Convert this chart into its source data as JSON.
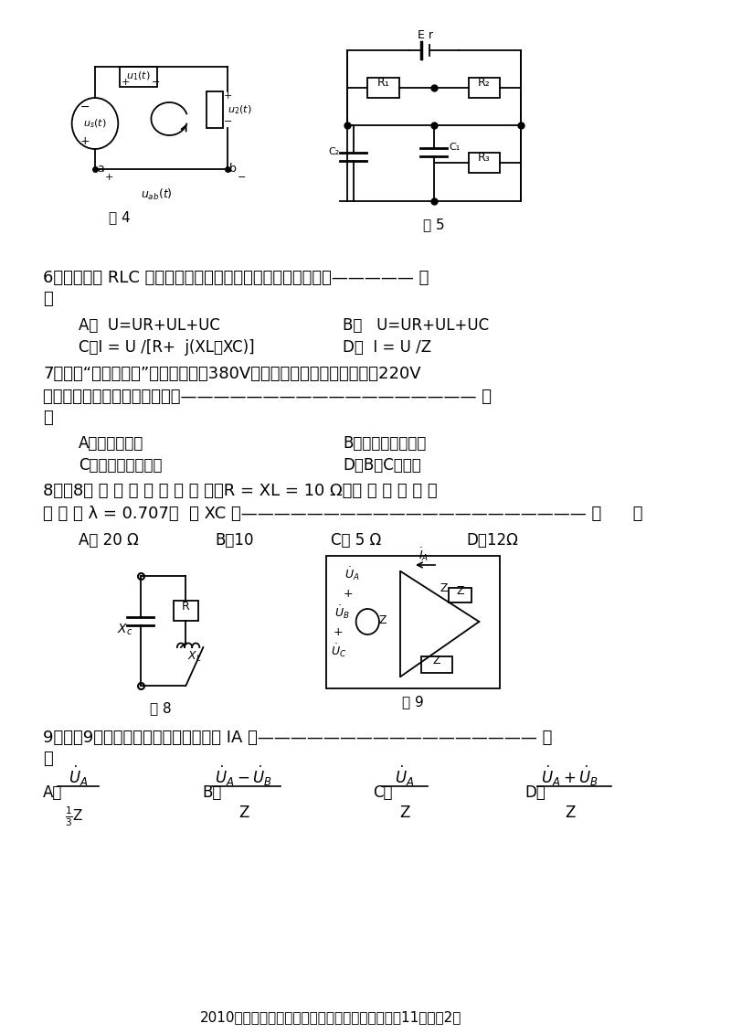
{
  "bg_color": "#ffffff",
  "footer": "2010对口高考电子电工综合知识模拟试卷（五）共11页，第2页",
  "fig4_label": "图 4",
  "fig5_label": "图 5",
  "fig8_label": "图 8",
  "fig9_label": "图 9"
}
